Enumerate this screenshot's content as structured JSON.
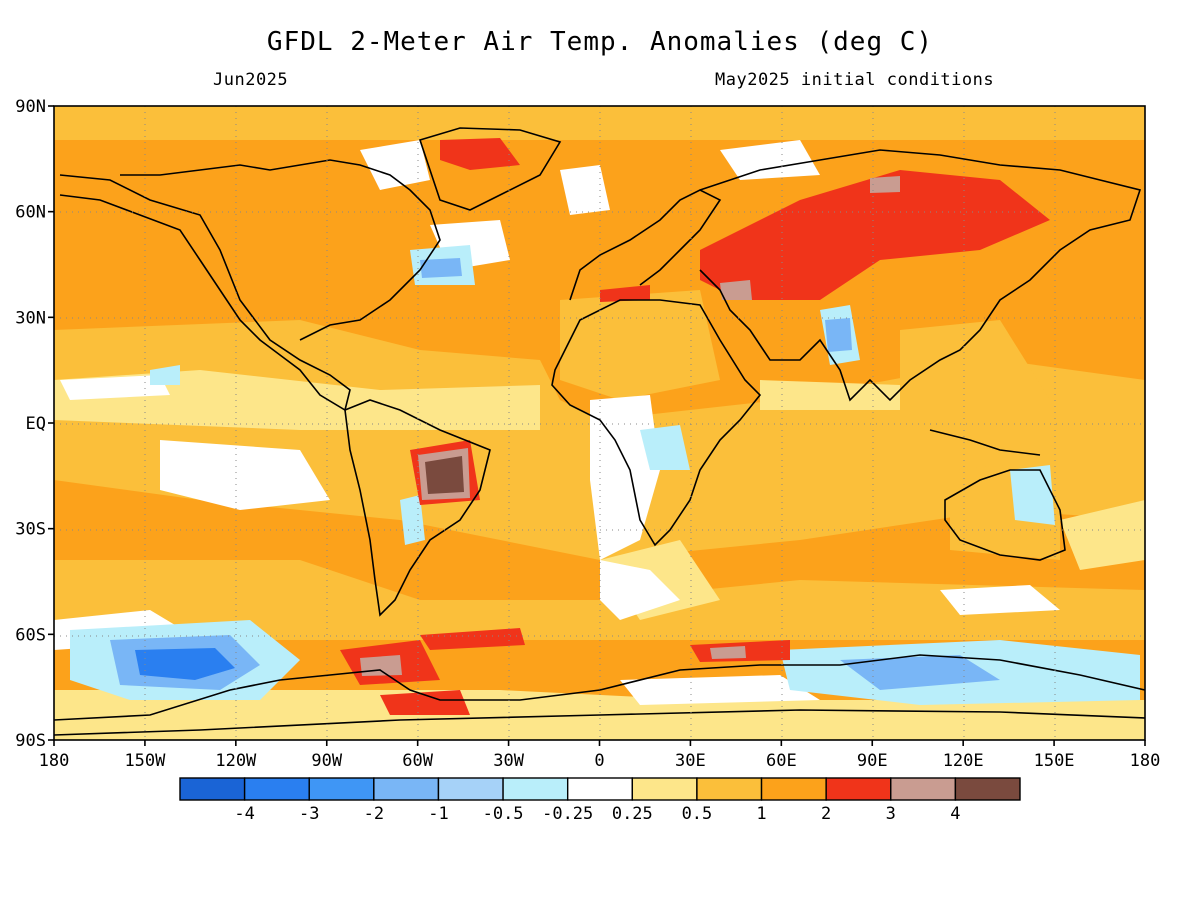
{
  "header": {
    "title": "GFDL 2-Meter Air Temp. Anomalies (deg C)",
    "left_subtitle": "Jun2025",
    "right_subtitle": "May2025 initial conditions"
  },
  "map": {
    "lat_labels": [
      "90N",
      "60N",
      "30N",
      "EQ",
      "30S",
      "60S",
      "90S"
    ],
    "lon_labels": [
      "180",
      "150W",
      "120W",
      "90W",
      "60W",
      "30W",
      "0",
      "30E",
      "60E",
      "90E",
      "120E",
      "150E",
      "180"
    ]
  },
  "colorbar": {
    "colors": [
      "#1a64d6",
      "#2a7ff0",
      "#3f96f5",
      "#79b6f6",
      "#a6d2f8",
      "#b9eefa",
      "#ffffff",
      "#fde68a",
      "#fbbf3a",
      "#fca21b",
      "#f0341a",
      "#c99c91",
      "#7a4a3e"
    ],
    "labels": [
      "-4",
      "-3",
      "-2",
      "-1",
      "-0.5",
      "-0.25",
      "0.25",
      "0.5",
      "1",
      "2",
      "3",
      "4"
    ]
  }
}
